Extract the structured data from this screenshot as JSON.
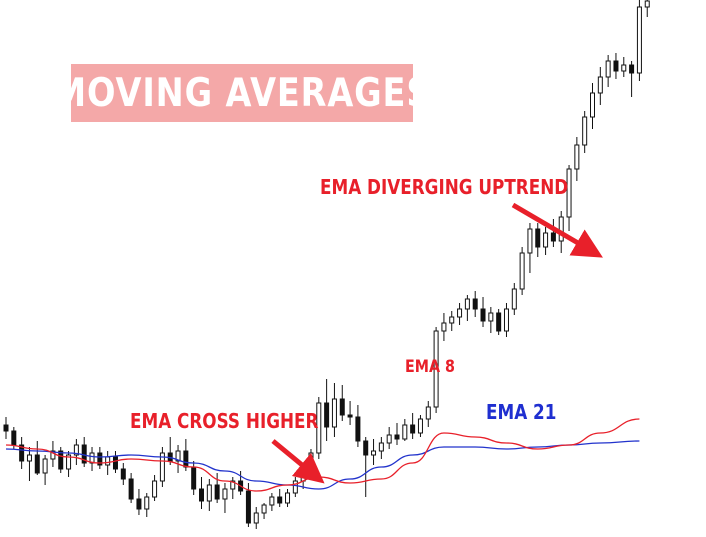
{
  "title": "MOVING AVERAGES",
  "colors": {
    "ema_fast": "#e8202a",
    "ema_slow": "#2233cc",
    "candle": "#111111",
    "title_bg": "#f4a8a8",
    "arrow": "#e8202a"
  },
  "annotations": {
    "cross": "EMA CROSS HIGHER",
    "diverging": "EMA DIVERGING UPTREND",
    "ema8": "EMA 8",
    "ema21": "EMA 21"
  },
  "chart_data": {
    "type": "candlestick",
    "title": "MOVING AVERAGES",
    "xlabel": "",
    "ylabel": "",
    "axes_visible": false,
    "grid": false,
    "ylim": [
      0,
      537
    ],
    "value_note": "approximate price levels on a 0-537 scale (higher = higher price)",
    "candles": [
      {
        "o": 112,
        "h": 120,
        "l": 98,
        "c": 106
      },
      {
        "o": 106,
        "h": 110,
        "l": 88,
        "c": 92
      },
      {
        "o": 92,
        "h": 100,
        "l": 68,
        "c": 76
      },
      {
        "o": 76,
        "h": 90,
        "l": 56,
        "c": 82
      },
      {
        "o": 82,
        "h": 96,
        "l": 62,
        "c": 64
      },
      {
        "o": 64,
        "h": 82,
        "l": 52,
        "c": 78
      },
      {
        "o": 78,
        "h": 96,
        "l": 70,
        "c": 86
      },
      {
        "o": 86,
        "h": 90,
        "l": 64,
        "c": 68
      },
      {
        "o": 68,
        "h": 86,
        "l": 60,
        "c": 82
      },
      {
        "o": 82,
        "h": 98,
        "l": 72,
        "c": 92
      },
      {
        "o": 92,
        "h": 100,
        "l": 70,
        "c": 74
      },
      {
        "o": 74,
        "h": 90,
        "l": 66,
        "c": 84
      },
      {
        "o": 84,
        "h": 90,
        "l": 68,
        "c": 72
      },
      {
        "o": 72,
        "h": 86,
        "l": 62,
        "c": 80
      },
      {
        "o": 80,
        "h": 86,
        "l": 64,
        "c": 68
      },
      {
        "o": 68,
        "h": 74,
        "l": 52,
        "c": 58
      },
      {
        "o": 58,
        "h": 64,
        "l": 34,
        "c": 38
      },
      {
        "o": 38,
        "h": 48,
        "l": 22,
        "c": 28
      },
      {
        "o": 28,
        "h": 44,
        "l": 20,
        "c": 40
      },
      {
        "o": 40,
        "h": 62,
        "l": 36,
        "c": 56
      },
      {
        "o": 56,
        "h": 90,
        "l": 50,
        "c": 84
      },
      {
        "o": 84,
        "h": 100,
        "l": 72,
        "c": 76
      },
      {
        "o": 76,
        "h": 92,
        "l": 64,
        "c": 86
      },
      {
        "o": 86,
        "h": 98,
        "l": 66,
        "c": 70
      },
      {
        "o": 70,
        "h": 76,
        "l": 42,
        "c": 48
      },
      {
        "o": 48,
        "h": 60,
        "l": 28,
        "c": 36
      },
      {
        "o": 36,
        "h": 58,
        "l": 26,
        "c": 52
      },
      {
        "o": 52,
        "h": 64,
        "l": 34,
        "c": 38
      },
      {
        "o": 38,
        "h": 54,
        "l": 24,
        "c": 48
      },
      {
        "o": 48,
        "h": 60,
        "l": 38,
        "c": 56
      },
      {
        "o": 56,
        "h": 66,
        "l": 42,
        "c": 46
      },
      {
        "o": 46,
        "h": 54,
        "l": 10,
        "c": 14
      },
      {
        "o": 14,
        "h": 30,
        "l": 8,
        "c": 24
      },
      {
        "o": 24,
        "h": 34,
        "l": 18,
        "c": 32
      },
      {
        "o": 32,
        "h": 44,
        "l": 26,
        "c": 40
      },
      {
        "o": 40,
        "h": 48,
        "l": 30,
        "c": 34
      },
      {
        "o": 34,
        "h": 48,
        "l": 30,
        "c": 44
      },
      {
        "o": 44,
        "h": 60,
        "l": 40,
        "c": 56
      },
      {
        "o": 56,
        "h": 72,
        "l": 48,
        "c": 66
      },
      {
        "o": 66,
        "h": 88,
        "l": 60,
        "c": 84
      },
      {
        "o": 84,
        "h": 140,
        "l": 78,
        "c": 134
      },
      {
        "o": 134,
        "h": 158,
        "l": 96,
        "c": 110
      },
      {
        "o": 110,
        "h": 154,
        "l": 100,
        "c": 138
      },
      {
        "o": 138,
        "h": 152,
        "l": 116,
        "c": 122
      },
      {
        "o": 122,
        "h": 136,
        "l": 112,
        "c": 120
      },
      {
        "o": 120,
        "h": 132,
        "l": 90,
        "c": 96
      },
      {
        "o": 96,
        "h": 100,
        "l": 40,
        "c": 82
      },
      {
        "o": 82,
        "h": 98,
        "l": 72,
        "c": 86
      },
      {
        "o": 86,
        "h": 100,
        "l": 78,
        "c": 94
      },
      {
        "o": 94,
        "h": 110,
        "l": 88,
        "c": 102
      },
      {
        "o": 102,
        "h": 114,
        "l": 92,
        "c": 98
      },
      {
        "o": 98,
        "h": 118,
        "l": 96,
        "c": 112
      },
      {
        "o": 112,
        "h": 124,
        "l": 98,
        "c": 104
      },
      {
        "o": 104,
        "h": 122,
        "l": 100,
        "c": 118
      },
      {
        "o": 118,
        "h": 136,
        "l": 110,
        "c": 130
      },
      {
        "o": 130,
        "h": 210,
        "l": 124,
        "c": 206
      },
      {
        "o": 206,
        "h": 224,
        "l": 196,
        "c": 214
      },
      {
        "o": 214,
        "h": 226,
        "l": 206,
        "c": 220
      },
      {
        "o": 220,
        "h": 234,
        "l": 212,
        "c": 228
      },
      {
        "o": 228,
        "h": 242,
        "l": 216,
        "c": 238
      },
      {
        "o": 238,
        "h": 246,
        "l": 220,
        "c": 228
      },
      {
        "o": 228,
        "h": 240,
        "l": 210,
        "c": 216
      },
      {
        "o": 216,
        "h": 230,
        "l": 204,
        "c": 224
      },
      {
        "o": 224,
        "h": 228,
        "l": 202,
        "c": 206
      },
      {
        "o": 206,
        "h": 234,
        "l": 200,
        "c": 228
      },
      {
        "o": 228,
        "h": 254,
        "l": 222,
        "c": 248
      },
      {
        "o": 248,
        "h": 290,
        "l": 242,
        "c": 284
      },
      {
        "o": 284,
        "h": 314,
        "l": 264,
        "c": 308
      },
      {
        "o": 308,
        "h": 314,
        "l": 280,
        "c": 290
      },
      {
        "o": 290,
        "h": 310,
        "l": 282,
        "c": 304
      },
      {
        "o": 304,
        "h": 318,
        "l": 290,
        "c": 296
      },
      {
        "o": 296,
        "h": 326,
        "l": 284,
        "c": 320
      },
      {
        "o": 320,
        "h": 372,
        "l": 306,
        "c": 368
      },
      {
        "o": 368,
        "h": 400,
        "l": 356,
        "c": 392
      },
      {
        "o": 392,
        "h": 426,
        "l": 384,
        "c": 420
      },
      {
        "o": 420,
        "h": 454,
        "l": 408,
        "c": 444
      },
      {
        "o": 444,
        "h": 470,
        "l": 432,
        "c": 460
      },
      {
        "o": 460,
        "h": 482,
        "l": 450,
        "c": 476
      },
      {
        "o": 476,
        "h": 484,
        "l": 458,
        "c": 466
      },
      {
        "o": 466,
        "h": 480,
        "l": 460,
        "c": 472
      },
      {
        "o": 472,
        "h": 476,
        "l": 440,
        "c": 464
      },
      {
        "o": 464,
        "h": 540,
        "l": 456,
        "c": 530
      },
      {
        "o": 530,
        "h": 540,
        "l": 520,
        "c": 536
      }
    ],
    "series": [
      {
        "name": "EMA 8",
        "color": "#e8202a",
        "x": [
          0,
          4,
          8,
          12,
          16,
          20,
          24,
          28,
          32,
          36,
          40,
          44,
          48,
          52,
          56,
          60,
          64,
          68,
          72,
          76,
          81
        ],
        "values": [
          92,
          88,
          80,
          74,
          78,
          76,
          70,
          56,
          46,
          52,
          60,
          54,
          58,
          74,
          104,
          100,
          94,
          88,
          92,
          104,
          118
        ]
      },
      {
        "name": "EMA 21",
        "color": "#2233cc",
        "x": [
          0,
          4,
          8,
          12,
          16,
          20,
          24,
          28,
          32,
          36,
          40,
          44,
          48,
          52,
          56,
          60,
          64,
          68,
          72,
          76,
          81
        ],
        "values": [
          88,
          86,
          84,
          80,
          82,
          80,
          74,
          66,
          56,
          52,
          48,
          58,
          70,
          82,
          90,
          90,
          88,
          90,
          92,
          94,
          96
        ]
      }
    ]
  }
}
